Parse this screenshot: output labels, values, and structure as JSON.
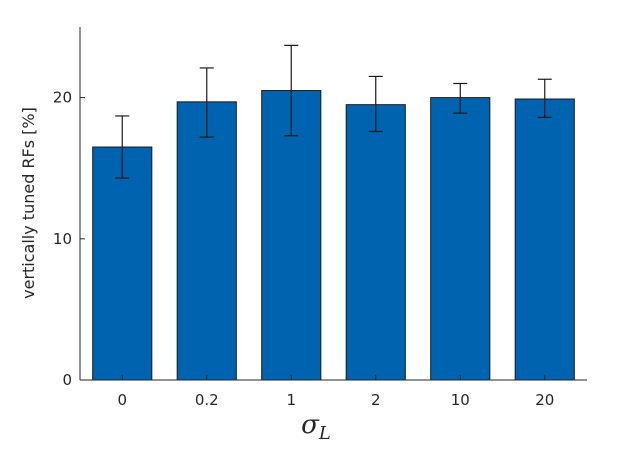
{
  "chart_data": {
    "type": "bar",
    "categories": [
      "0",
      "0.2",
      "1",
      "2",
      "10",
      "20"
    ],
    "values": [
      16.5,
      19.7,
      20.5,
      19.5,
      20.0,
      19.9
    ],
    "error_low": [
      14.3,
      17.2,
      17.3,
      17.6,
      18.9,
      18.6
    ],
    "error_high": [
      18.7,
      22.1,
      23.7,
      21.5,
      21.0,
      21.3
    ],
    "ylabel": "vertically tuned RFs [%]",
    "xlabel": "σ",
    "xlabel_subscript": "L",
    "ylim": [
      0,
      25
    ],
    "yticks": [
      0,
      10,
      20
    ],
    "bar_color": "#0063B0",
    "grid": false
  }
}
